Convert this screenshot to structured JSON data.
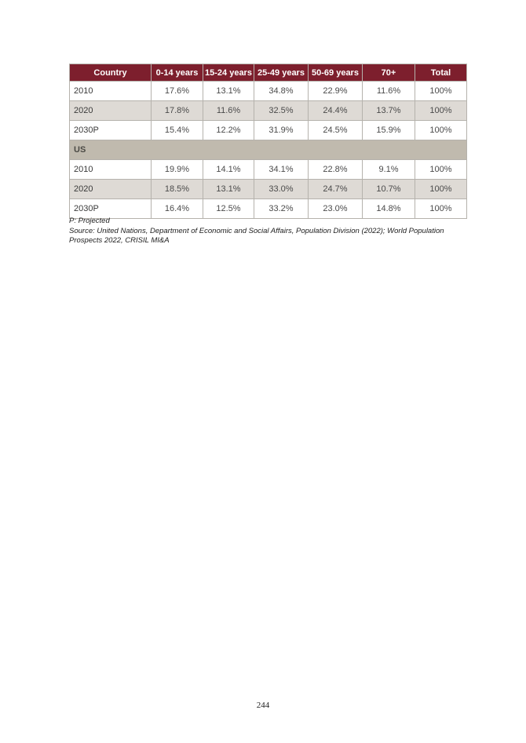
{
  "page": {
    "number": "244"
  },
  "table": {
    "columns": [
      "Country",
      "0-14 years",
      "15-24 years",
      "25-49 years",
      "50-69 years",
      "70+",
      "Total"
    ],
    "sections": [
      {
        "label": "",
        "rows": [
          {
            "label": "2010",
            "values": [
              "17.6%",
              "13.1%",
              "34.8%",
              "22.9%",
              "11.6%",
              "100%"
            ]
          },
          {
            "label": "2020",
            "values": [
              "17.8%",
              "11.6%",
              "32.5%",
              "24.4%",
              "13.7%",
              "100%"
            ]
          },
          {
            "label": "2030P",
            "values": [
              "15.4%",
              "12.2%",
              "31.9%",
              "24.5%",
              "15.9%",
              "100%"
            ]
          }
        ]
      },
      {
        "label": "US",
        "rows": [
          {
            "label": "2010",
            "values": [
              "19.9%",
              "14.1%",
              "34.1%",
              "22.8%",
              "9.1%",
              "100%"
            ]
          },
          {
            "label": "2020",
            "values": [
              "18.5%",
              "13.1%",
              "33.0%",
              "24.7%",
              "10.7%",
              "100%"
            ]
          },
          {
            "label": "2030P",
            "values": [
              "16.4%",
              "12.5%",
              "33.2%",
              "23.0%",
              "14.8%",
              "100%"
            ]
          }
        ]
      }
    ]
  },
  "notes": {
    "projected": "P: Projected",
    "source": "Source: United Nations, Department of Economic and Social Affairs, Population Division (2022); World Population Prospects 2022, CRISIL MI&A"
  },
  "colors": {
    "header_bg": "#7d1f2d",
    "header_text": "#ffffff",
    "row_alt_bg": "#dedad5",
    "section_bg": "#c0baae",
    "border": "#b5b2ac",
    "text": "#3f3f3f"
  }
}
